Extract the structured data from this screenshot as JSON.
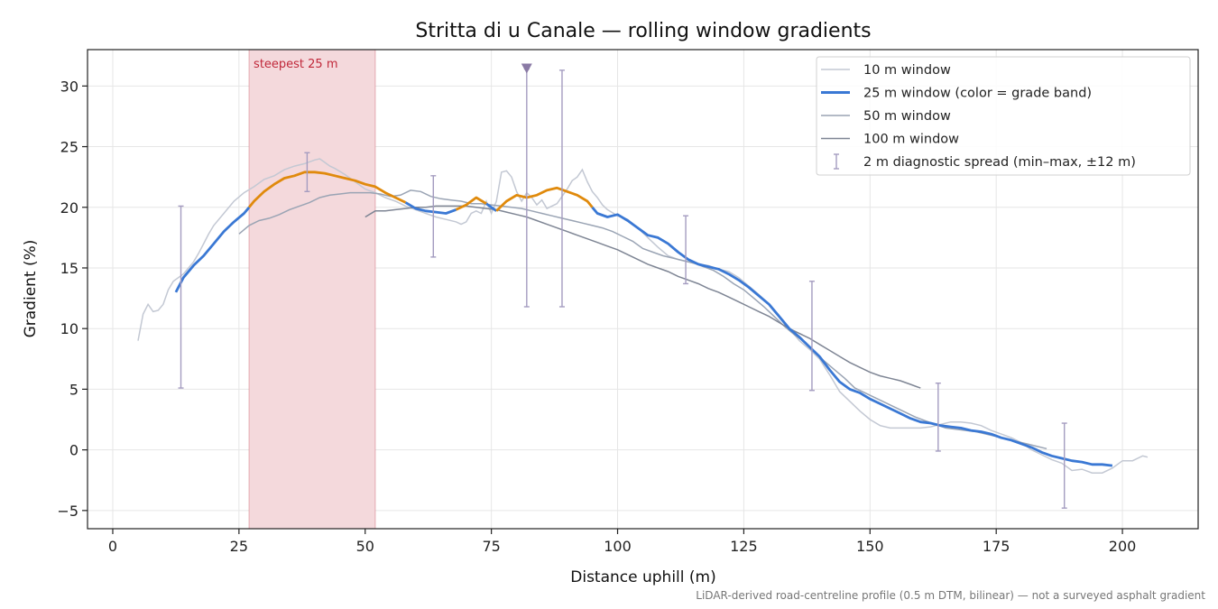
{
  "chart_data": {
    "type": "line",
    "title": "Stritta di u Canale — rolling window gradients",
    "xlabel": "Distance uphill (m)",
    "ylabel": "Gradient (%)",
    "xlim": [
      -5,
      215
    ],
    "ylim": [
      -6.5,
      33
    ],
    "x_ticks": [
      0,
      25,
      50,
      75,
      100,
      125,
      150,
      175,
      200
    ],
    "y_ticks": [
      -5,
      0,
      5,
      10,
      15,
      20,
      25,
      30
    ],
    "grid": true,
    "legend_position": "top-right",
    "footnote": "LiDAR-derived road-centreline profile (0.5 m DTM, bilinear) — not a surveyed asphalt gradient",
    "steepest": {
      "label": "steepest 25 m",
      "x_start": 27,
      "x_end": 52,
      "color": "#d9828a"
    },
    "peak_marker": {
      "x": 82,
      "y": 31.4,
      "color": "#8a7aa5"
    },
    "grade_band_colors": {
      "low": "#3a78d4",
      "high": "#e08a0c"
    },
    "series": [
      {
        "name": "10 m window",
        "color": "#c3c8d3",
        "x": [
          5,
          6,
          7,
          8,
          9,
          10,
          11,
          12,
          13,
          14,
          15,
          16,
          17,
          18,
          19,
          20,
          22,
          24,
          26,
          28,
          30,
          32,
          34,
          36,
          38,
          40,
          41,
          42,
          43,
          44,
          46,
          48,
          50,
          52,
          54,
          56,
          58,
          60,
          62,
          64,
          66,
          68,
          69,
          70,
          71,
          72,
          73,
          74,
          75,
          76,
          77,
          78,
          79,
          80,
          81,
          82,
          83,
          84,
          85,
          86,
          88,
          90,
          91,
          92,
          93,
          94,
          95,
          96,
          97,
          98,
          100,
          102,
          104,
          106,
          108,
          110,
          112,
          114,
          116,
          118,
          120,
          122,
          124,
          126,
          128,
          130,
          132,
          134,
          136,
          138,
          140,
          142,
          144,
          146,
          148,
          150,
          152,
          154,
          156,
          158,
          160,
          162,
          164,
          166,
          168,
          170,
          172,
          174,
          176,
          178,
          180,
          182,
          184,
          186,
          188,
          190,
          192,
          194,
          196,
          198,
          200,
          202,
          204,
          205
        ],
        "values": [
          9,
          11.2,
          12,
          11.4,
          11.5,
          12,
          13.2,
          13.9,
          14.2,
          14.5,
          15,
          15.5,
          16.2,
          17,
          17.8,
          18.5,
          19.5,
          20.5,
          21.2,
          21.7,
          22.3,
          22.6,
          23.1,
          23.4,
          23.6,
          23.9,
          24,
          23.7,
          23.4,
          23.2,
          22.7,
          22.1,
          21.5,
          21.2,
          20.8,
          20.5,
          20.1,
          19.8,
          19.5,
          19.2,
          19.0,
          18.8,
          18.6,
          18.8,
          19.5,
          19.7,
          19.5,
          20.5,
          19.5,
          20.5,
          22.9,
          23.0,
          22.5,
          21.3,
          20.5,
          21.2,
          20.8,
          20.2,
          20.6,
          19.9,
          20.3,
          21.5,
          22.2,
          22.5,
          23.1,
          22.1,
          21.3,
          20.8,
          20.2,
          19.8,
          19.3,
          19.0,
          18.3,
          17.5,
          16.7,
          16.0,
          15.7,
          15.5,
          15.3,
          15.2,
          14.9,
          14.7,
          14.2,
          13.5,
          12.8,
          12.0,
          11.0,
          10.0,
          9.0,
          8.3,
          7.5,
          6.2,
          4.8,
          4.0,
          3.2,
          2.5,
          2.0,
          1.8,
          1.8,
          1.8,
          1.8,
          1.9,
          2.1,
          2.3,
          2.3,
          2.2,
          2.0,
          1.6,
          1.3,
          1.0,
          0.6,
          0.0,
          -0.4,
          -0.8,
          -1.1,
          -1.7,
          -1.6,
          -1.9,
          -1.9,
          -1.5,
          -0.9,
          -0.9,
          -0.5,
          -0.6
        ]
      },
      {
        "name": "25 m window (color = grade band)",
        "color": "#3a78d4",
        "linewidth": 2.6,
        "x": [
          12.5,
          14,
          16,
          18,
          20,
          22,
          24,
          26,
          28,
          30,
          32,
          34,
          36,
          38,
          40,
          42,
          44,
          46,
          48,
          50,
          52,
          54,
          56,
          58,
          60,
          62,
          64,
          66,
          68,
          70,
          72,
          74,
          76,
          78,
          80,
          82,
          84,
          86,
          88,
          90,
          92,
          94,
          96,
          98,
          100,
          102,
          104,
          106,
          108,
          110,
          112,
          114,
          116,
          118,
          120,
          122,
          124,
          126,
          128,
          130,
          132,
          134,
          136,
          138,
          140,
          142,
          144,
          146,
          148,
          150,
          152,
          154,
          156,
          158,
          160,
          162,
          164,
          166,
          168,
          170,
          172,
          174,
          176,
          178,
          180,
          182,
          184,
          186,
          188,
          190,
          192,
          194,
          196,
          198
        ],
        "values": [
          13,
          14.2,
          15.2,
          16,
          17,
          18,
          18.8,
          19.5,
          20.5,
          21.3,
          21.9,
          22.4,
          22.6,
          22.9,
          22.9,
          22.8,
          22.6,
          22.4,
          22.2,
          21.9,
          21.7,
          21.2,
          20.8,
          20.4,
          19.9,
          19.7,
          19.6,
          19.5,
          19.8,
          20.2,
          20.8,
          20.3,
          19.7,
          20.5,
          21.0,
          20.8,
          21.0,
          21.4,
          21.6,
          21.3,
          21.0,
          20.5,
          19.5,
          19.2,
          19.4,
          18.9,
          18.3,
          17.7,
          17.5,
          17.0,
          16.3,
          15.7,
          15.3,
          15.1,
          14.9,
          14.5,
          14.0,
          13.4,
          12.7,
          12.0,
          11.0,
          10.0,
          9.3,
          8.5,
          7.7,
          6.6,
          5.6,
          5.0,
          4.7,
          4.2,
          3.8,
          3.4,
          3.0,
          2.6,
          2.3,
          2.2,
          2.0,
          1.9,
          1.8,
          1.6,
          1.5,
          1.3,
          1.0,
          0.8,
          0.5,
          0.2,
          -0.2,
          -0.5,
          -0.7,
          -0.9,
          -1.0,
          -1.2,
          -1.2,
          -1.3
        ],
        "bands": [
          {
            "x_start": 12.5,
            "x_end": 27,
            "band": "low"
          },
          {
            "x_start": 27,
            "x_end": 58,
            "band": "high"
          },
          {
            "x_start": 58,
            "x_end": 68,
            "band": "low"
          },
          {
            "x_start": 68,
            "x_end": 74,
            "band": "high"
          },
          {
            "x_start": 74,
            "x_end": 76,
            "band": "low"
          },
          {
            "x_start": 76,
            "x_end": 95,
            "band": "high"
          },
          {
            "x_start": 95,
            "x_end": 198,
            "band": "low"
          }
        ]
      },
      {
        "name": "50 m window",
        "color": "#9aa4b4",
        "x": [
          25,
          27,
          29,
          31,
          33,
          35,
          37,
          39,
          41,
          43,
          45,
          47,
          49,
          51,
          53,
          55,
          57,
          59,
          61,
          63,
          65,
          67,
          69,
          71,
          73,
          75,
          77,
          79,
          81,
          83,
          85,
          87,
          89,
          91,
          93,
          95,
          97,
          99,
          101,
          103,
          105,
          107,
          109,
          111,
          113,
          115,
          117,
          119,
          121,
          123,
          125,
          127,
          129,
          131,
          133,
          135,
          137,
          139,
          141,
          143,
          145,
          147,
          149,
          151,
          153,
          155,
          157,
          159,
          161,
          163,
          165,
          167,
          169,
          171,
          173,
          175,
          177,
          179,
          181,
          183,
          185
        ],
        "values": [
          17.8,
          18.5,
          18.9,
          19.1,
          19.4,
          19.8,
          20.1,
          20.4,
          20.8,
          21.0,
          21.1,
          21.2,
          21.2,
          21.2,
          21.1,
          20.9,
          21.0,
          21.4,
          21.3,
          20.9,
          20.7,
          20.6,
          20.5,
          20.3,
          20.3,
          20.2,
          20.1,
          20.0,
          19.9,
          19.7,
          19.5,
          19.3,
          19.1,
          18.9,
          18.7,
          18.5,
          18.3,
          18.0,
          17.6,
          17.2,
          16.6,
          16.3,
          16.0,
          15.8,
          15.6,
          15.4,
          15.1,
          14.8,
          14.3,
          13.7,
          13.2,
          12.5,
          11.8,
          11.0,
          10.2,
          9.5,
          8.9,
          8.1,
          7.3,
          6.6,
          5.9,
          5.1,
          4.7,
          4.3,
          3.9,
          3.5,
          3.1,
          2.7,
          2.4,
          2.1,
          1.8,
          1.7,
          1.6,
          1.5,
          1.3,
          1.1,
          0.9,
          0.7,
          0.5,
          0.3,
          0.1
        ]
      },
      {
        "name": "100 m window",
        "color": "#7e8594",
        "x": [
          50,
          52,
          54,
          56,
          58,
          60,
          62,
          64,
          66,
          68,
          70,
          72,
          74,
          76,
          78,
          80,
          82,
          84,
          86,
          88,
          90,
          92,
          94,
          96,
          98,
          100,
          102,
          104,
          106,
          108,
          110,
          112,
          114,
          116,
          118,
          120,
          122,
          124,
          126,
          128,
          130,
          132,
          134,
          136,
          138,
          140,
          142,
          144,
          146,
          148,
          150,
          152,
          154,
          156,
          158,
          160
        ],
        "values": [
          19.2,
          19.7,
          19.7,
          19.8,
          19.9,
          20.0,
          20.0,
          20.1,
          20.1,
          20.1,
          20.1,
          20.0,
          19.9,
          19.8,
          19.6,
          19.4,
          19.2,
          18.9,
          18.6,
          18.3,
          18.0,
          17.7,
          17.4,
          17.1,
          16.8,
          16.5,
          16.1,
          15.7,
          15.3,
          15.0,
          14.7,
          14.3,
          14.0,
          13.7,
          13.3,
          13.0,
          12.6,
          12.2,
          11.8,
          11.4,
          11.0,
          10.5,
          10.0,
          9.6,
          9.2,
          8.7,
          8.2,
          7.7,
          7.2,
          6.8,
          6.4,
          6.1,
          5.9,
          5.7,
          5.4,
          5.1
        ]
      }
    ],
    "diagnostic_spread": {
      "name": "2 m diagnostic spread (min–max, ±12 m)",
      "color": "#a49cc0",
      "points": [
        {
          "x": 13.5,
          "min": 5.1,
          "max": 20.1
        },
        {
          "x": 38.5,
          "min": 21.3,
          "max": 24.5
        },
        {
          "x": 63.5,
          "min": 15.9,
          "max": 22.6
        },
        {
          "x": 82,
          "min": 11.8,
          "max": 31.4
        },
        {
          "x": 89,
          "min": 11.8,
          "max": 31.3
        },
        {
          "x": 113.5,
          "min": 13.7,
          "max": 19.3
        },
        {
          "x": 138.5,
          "min": 4.9,
          "max": 13.9
        },
        {
          "x": 163.5,
          "min": -0.1,
          "max": 5.5
        },
        {
          "x": 188.5,
          "min": -4.8,
          "max": 2.2
        }
      ]
    }
  }
}
